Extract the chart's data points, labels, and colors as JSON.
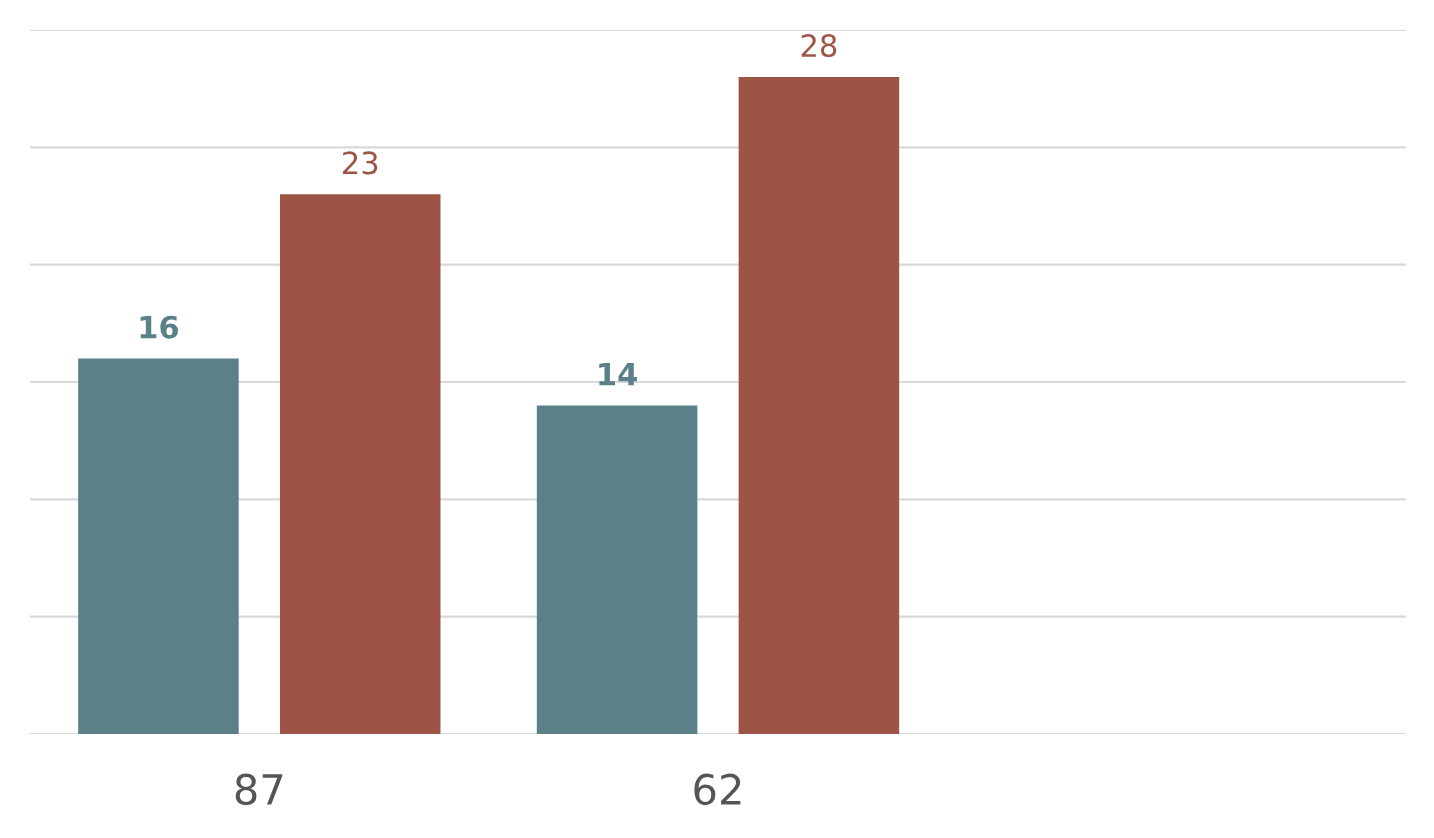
{
  "chart_data": {
    "type": "bar",
    "categories": [
      "87",
      "62",
      null
    ],
    "series": [
      {
        "color": "#5b8088",
        "values": [
          16,
          14,
          null
        ]
      },
      {
        "color": "#9e5444",
        "values": [
          23,
          28,
          null
        ]
      }
    ],
    "ylim": [
      0,
      30
    ],
    "yticks": [
      {
        "value": 0,
        "label": null
      },
      {
        "value": 5,
        "label": null
      },
      {
        "value": 10,
        "label": null
      },
      {
        "value": 15,
        "label": null
      },
      {
        "value": 20,
        "label": null
      },
      {
        "value": 25,
        "label": null
      },
      {
        "value": 30,
        "label": null
      }
    ],
    "grid": "y",
    "tick_labels": "x",
    "data_labels": true,
    "legend": false
  }
}
